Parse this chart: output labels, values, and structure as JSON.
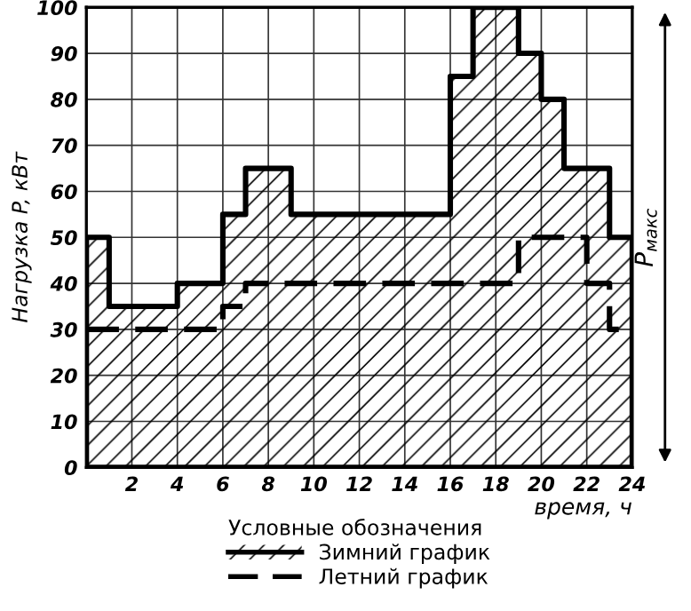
{
  "chart_data": {
    "type": "step",
    "xlabel": "время, ч",
    "ylabel": "Нагрузка P, кВт",
    "legend_title": "Условные обозначения",
    "x": [
      0,
      1,
      2,
      3,
      4,
      5,
      6,
      7,
      8,
      9,
      10,
      11,
      12,
      13,
      14,
      15,
      16,
      17,
      18,
      19,
      20,
      21,
      22,
      23,
      24
    ],
    "series": [
      {
        "name": "Зимний график",
        "type": "area",
        "color": "#000000",
        "line_style": "solid",
        "values": [
          50,
          35,
          35,
          35,
          40,
          40,
          55,
          65,
          65,
          55,
          55,
          55,
          55,
          55,
          55,
          55,
          85,
          100,
          100,
          90,
          80,
          65,
          65,
          50,
          50
        ]
      },
      {
        "name": "Летний график",
        "color": "#000000",
        "line_style": "dashed",
        "values": [
          30,
          30,
          30,
          30,
          30,
          30,
          35,
          40,
          40,
          40,
          40,
          40,
          40,
          40,
          40,
          40,
          40,
          40,
          40,
          50,
          50,
          50,
          40,
          30,
          30
        ]
      }
    ],
    "xlim": [
      0,
      24
    ],
    "xticks": [
      {
        "value": 0,
        "label": null
      },
      2,
      4,
      6,
      8,
      10,
      12,
      14,
      16,
      18,
      20,
      22,
      24
    ],
    "ylim": [
      0,
      100
    ],
    "yticks": [
      0,
      10,
      20,
      30,
      40,
      50,
      60,
      70,
      80,
      90,
      100
    ],
    "grid": true,
    "legend": "bottom",
    "annotations": [
      "P$_{макс}$"
    ]
  }
}
